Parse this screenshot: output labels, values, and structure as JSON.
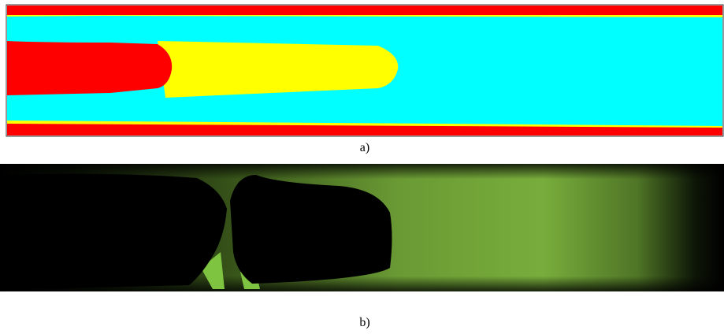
{
  "figure": {
    "panels": [
      {
        "label": "a)"
      },
      {
        "label": "b)"
      }
    ]
  }
}
